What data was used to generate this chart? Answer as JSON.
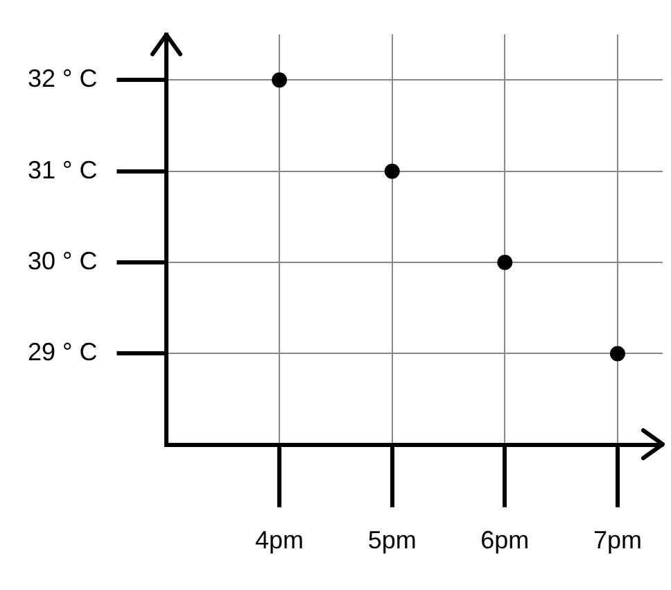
{
  "chart_data": {
    "type": "scatter",
    "categories": [
      "4pm",
      "5pm",
      "6pm",
      "7pm"
    ],
    "values": [
      32,
      31,
      30,
      29
    ],
    "color": "#000000",
    "marker": "circle",
    "ylim": [
      28,
      32.5
    ],
    "yticks": [
      {
        "value": 29,
        "label": "29 ° C"
      },
      {
        "value": 30,
        "label": "30 ° C"
      },
      {
        "value": 31,
        "label": "31 ° C"
      },
      {
        "value": 32,
        "label": "32 ° C"
      }
    ],
    "grid": true,
    "legend": false
  }
}
